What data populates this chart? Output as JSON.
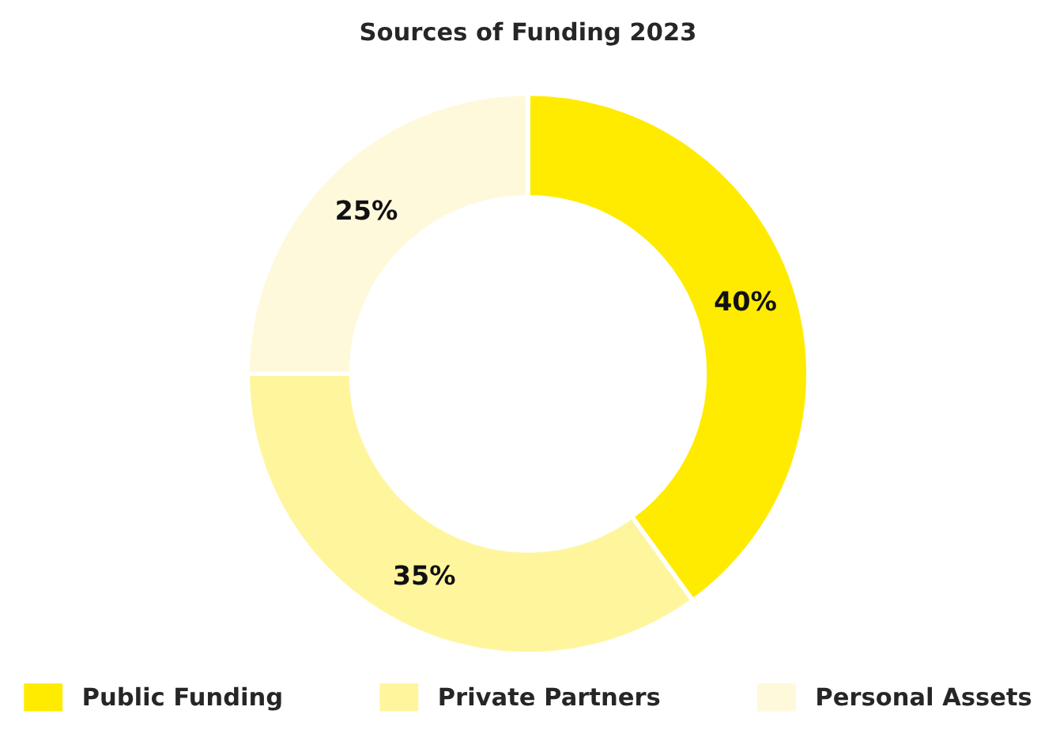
{
  "chart_data": {
    "type": "donut",
    "title": "Sources of Funding 2023",
    "categories": [
      "Public Funding",
      "Private Partners",
      "Personal Assets"
    ],
    "values": [
      40,
      35,
      25
    ],
    "colors": [
      "#ffeb00",
      "#fff59d",
      "#fff9dc"
    ],
    "value_labels": [
      "40%",
      "35%",
      "25%"
    ],
    "legend": "bottom"
  }
}
